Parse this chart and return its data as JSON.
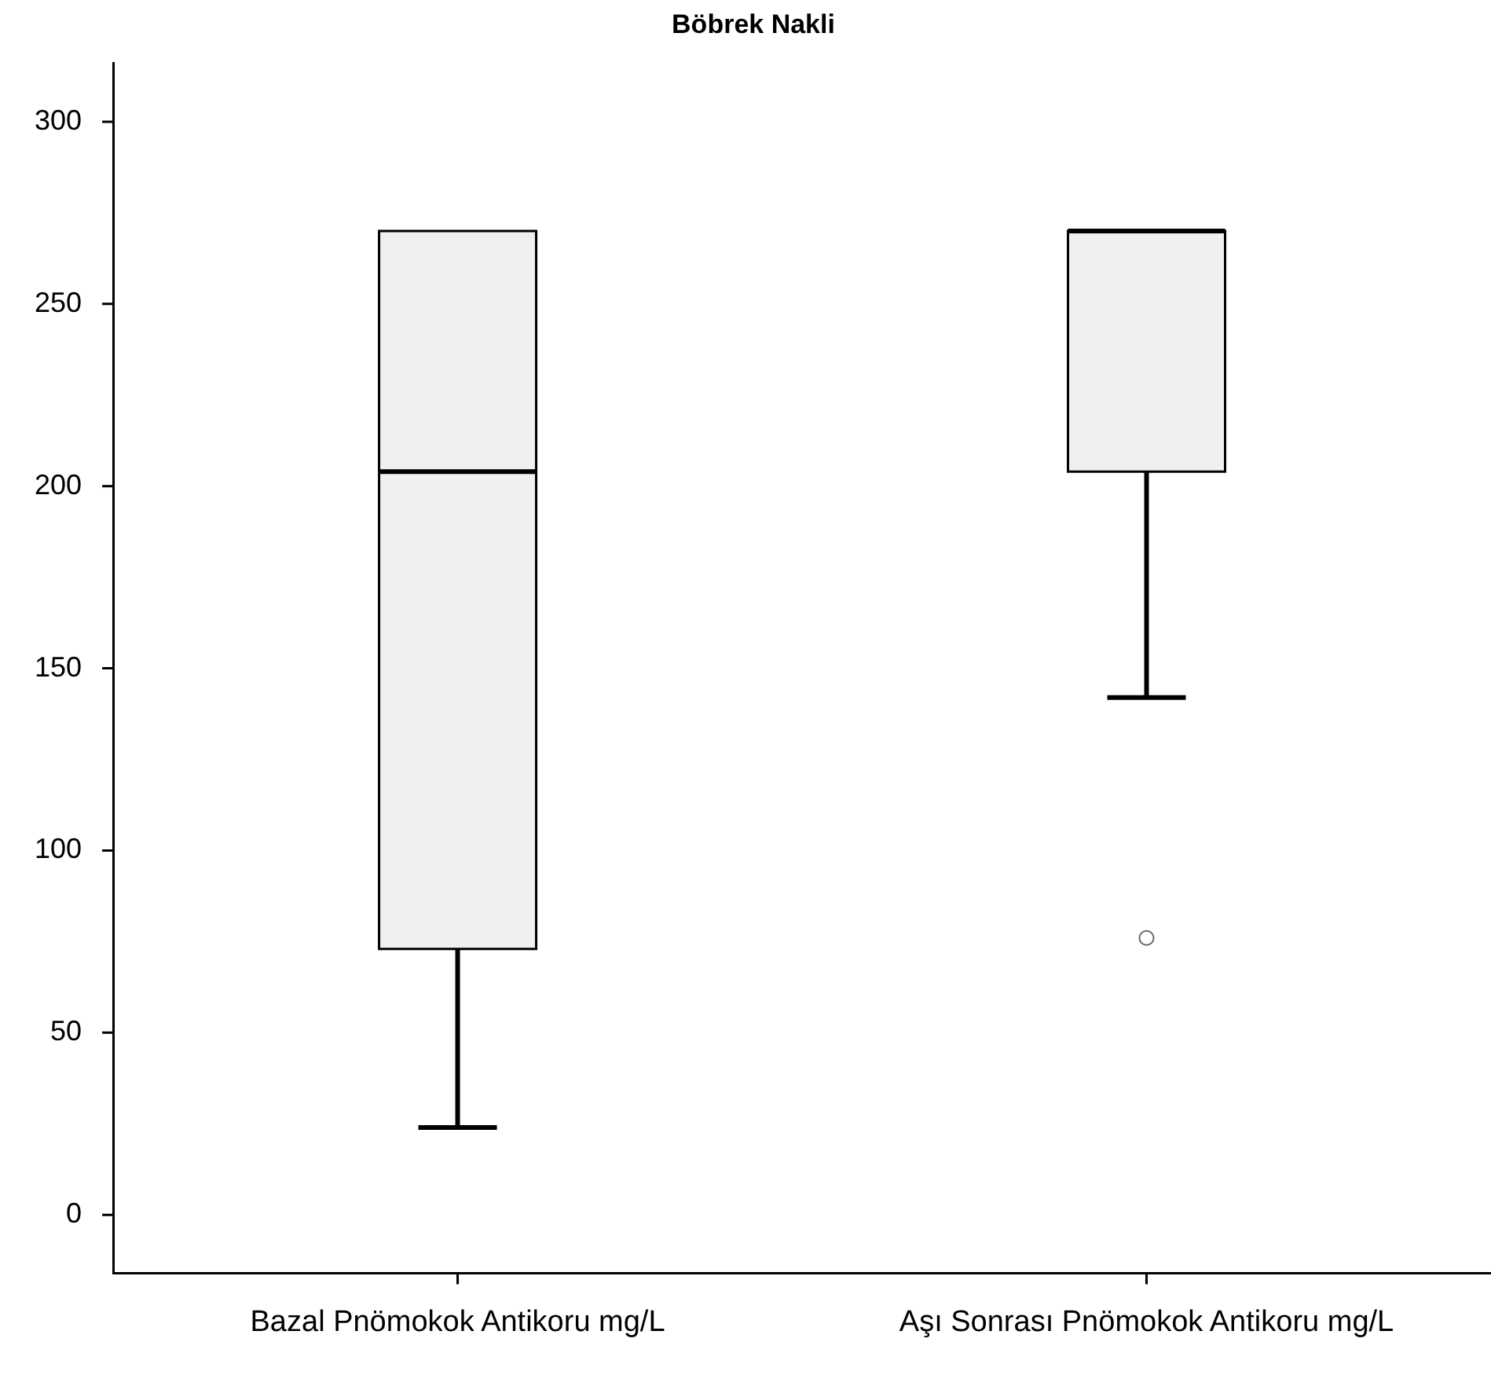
{
  "chart_data": {
    "type": "box",
    "title": "Böbrek Nakli",
    "categories": [
      "Bazal Pnömokok Antikoru mg/L",
      "Aşı Sonrası Pnömokok Antikoru mg/L"
    ],
    "boxes": [
      {
        "low": 24,
        "q1": 73,
        "median": 204,
        "q3": 270,
        "high": 270
      },
      {
        "low": 142,
        "q1": 204,
        "median": 270,
        "q3": 270,
        "high": 270,
        "outliers": [
          76
        ]
      }
    ],
    "color": "#f0f0f0",
    "ylim": [
      -16,
      316
    ],
    "yticks": [
      0,
      50,
      100,
      150,
      200,
      250,
      300
    ],
    "grid": false,
    "legend": false
  }
}
